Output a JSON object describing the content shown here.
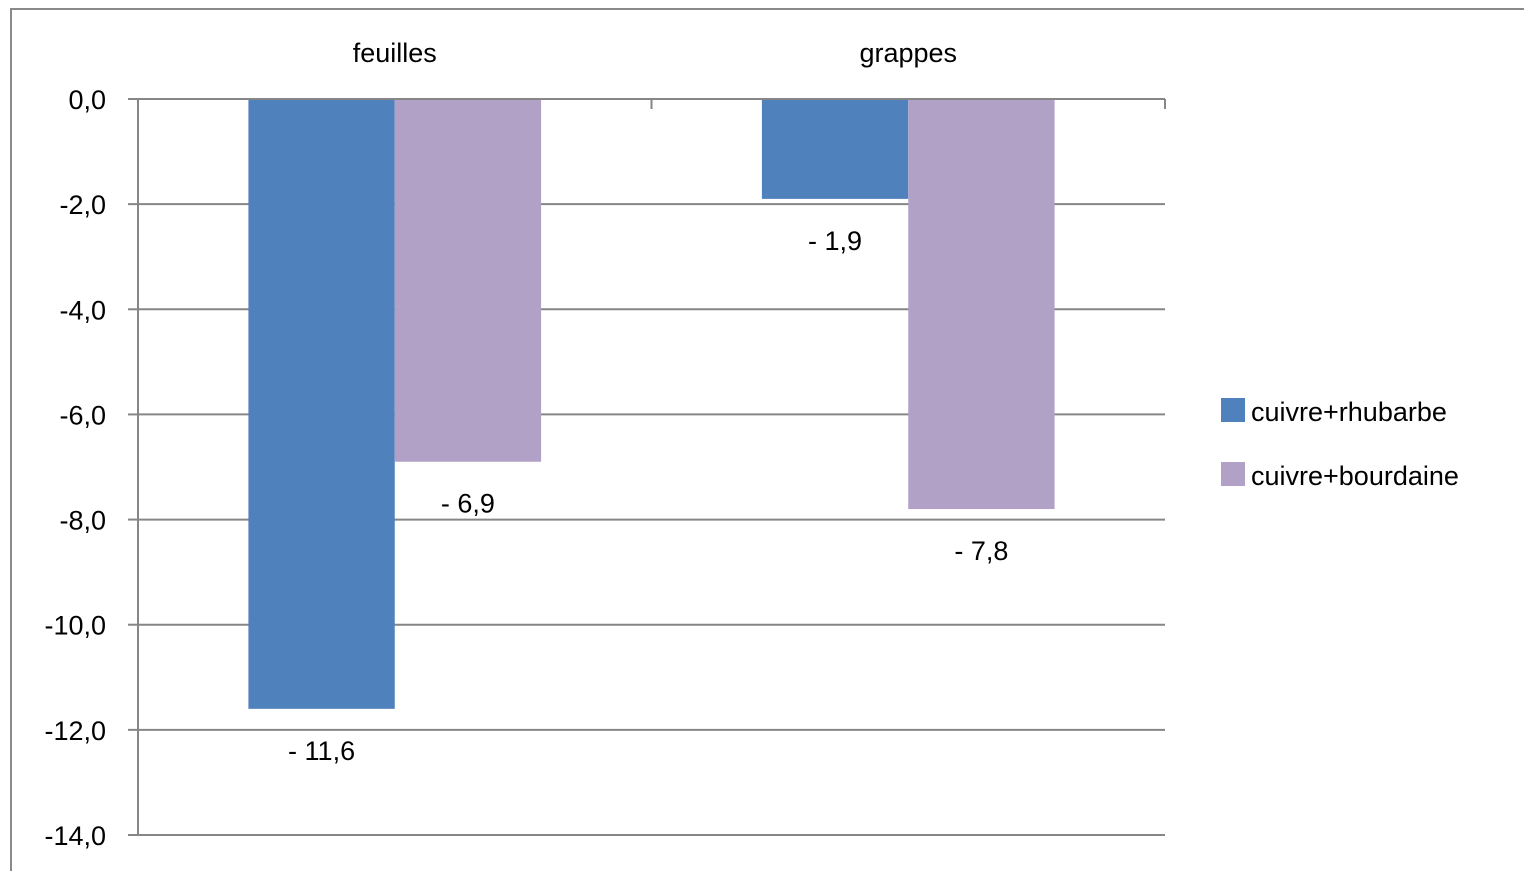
{
  "chart_data": {
    "type": "bar",
    "categories": [
      "feuilles",
      "grappes"
    ],
    "series": [
      {
        "name": "cuivre+rhubarbe",
        "values": [
          -11.6,
          -1.9
        ],
        "labels": [
          "- 11,6",
          "- 1,9"
        ],
        "color": "#4F81BD"
      },
      {
        "name": "cuivre+bourdaine",
        "values": [
          -6.9,
          -7.8
        ],
        "labels": [
          "- 6,9",
          "- 7,8"
        ],
        "color": "#B2A1C7"
      }
    ],
    "ylim": [
      -14,
      0
    ],
    "yticks": [
      0,
      -2,
      -4,
      -6,
      -8,
      -10,
      -12,
      -14
    ],
    "ytick_labels": [
      "0,0",
      "-2,0",
      "-4,0",
      "-6,0",
      "-8,0",
      "-10,0",
      "-12,0",
      "-14,0"
    ],
    "category_axis_position": "top",
    "grid": true,
    "legend_position": "right",
    "title": "",
    "xlabel": "",
    "ylabel": ""
  }
}
